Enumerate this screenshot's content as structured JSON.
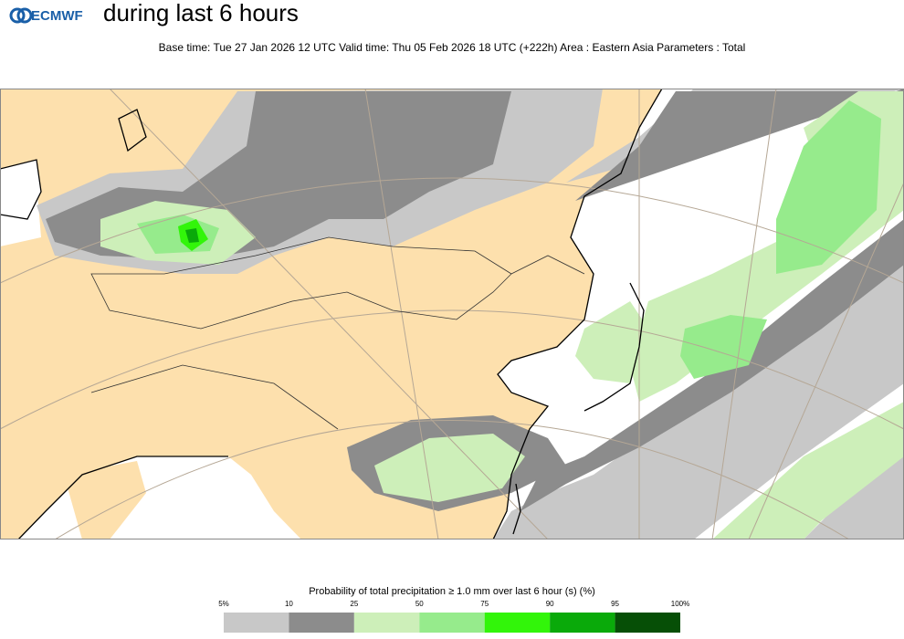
{
  "header": {
    "logo": "ECMWF",
    "title": "during last 6 hours",
    "subtitle": "Base time: Tue 27 Jan 2026 12 UTC Valid time: Thu 05 Feb 2026 18 UTC (+222h) Area : Eastern Asia Parameters : Total"
  },
  "legend": {
    "title": "Probability of total precipitation ≥ 1.0 mm over last 6 hour (s) (%)",
    "labels": [
      "5%",
      "10",
      "25",
      "50",
      "75",
      "90",
      "95",
      "100%"
    ],
    "colors": [
      "#c8c8c8",
      "#8c8c8c",
      "#cdefb9",
      "#96eb8c",
      "#32f50a",
      "#0aaa0a",
      "#064f06"
    ]
  }
}
